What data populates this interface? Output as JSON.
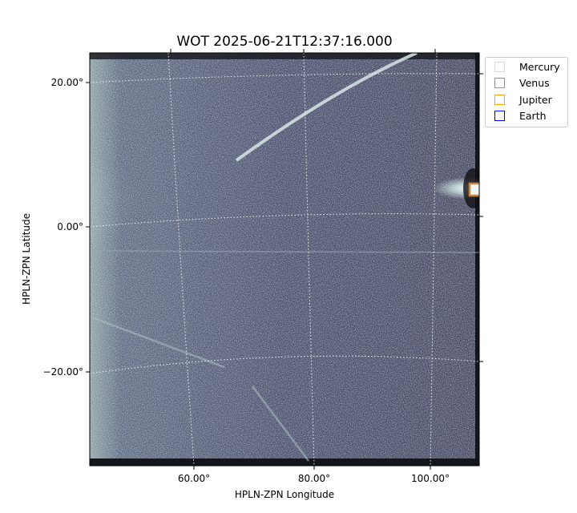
{
  "chart_data": {
    "type": "heatmap",
    "title": "WOT 2025-06-21T12:37:16.000",
    "xlabel": "HPLN-ZPN Longitude",
    "ylabel": "HPLN-ZPN Latitude",
    "x_ticks": [
      "60.00°",
      "80.00°",
      "100.00°"
    ],
    "y_ticks": [
      "20.00°",
      "0.00°",
      "−20.00°"
    ],
    "colormap": "bone",
    "grid": true,
    "legend_position": "outside-right-top",
    "legend": [
      {
        "name": "Mercury",
        "color": "#d8d8d8"
      },
      {
        "name": "Venus",
        "color": "#cd853f"
      },
      {
        "name": "Jupiter",
        "color": "#ffa500"
      },
      {
        "name": "Earth",
        "color": "#0000ff"
      }
    ]
  }
}
